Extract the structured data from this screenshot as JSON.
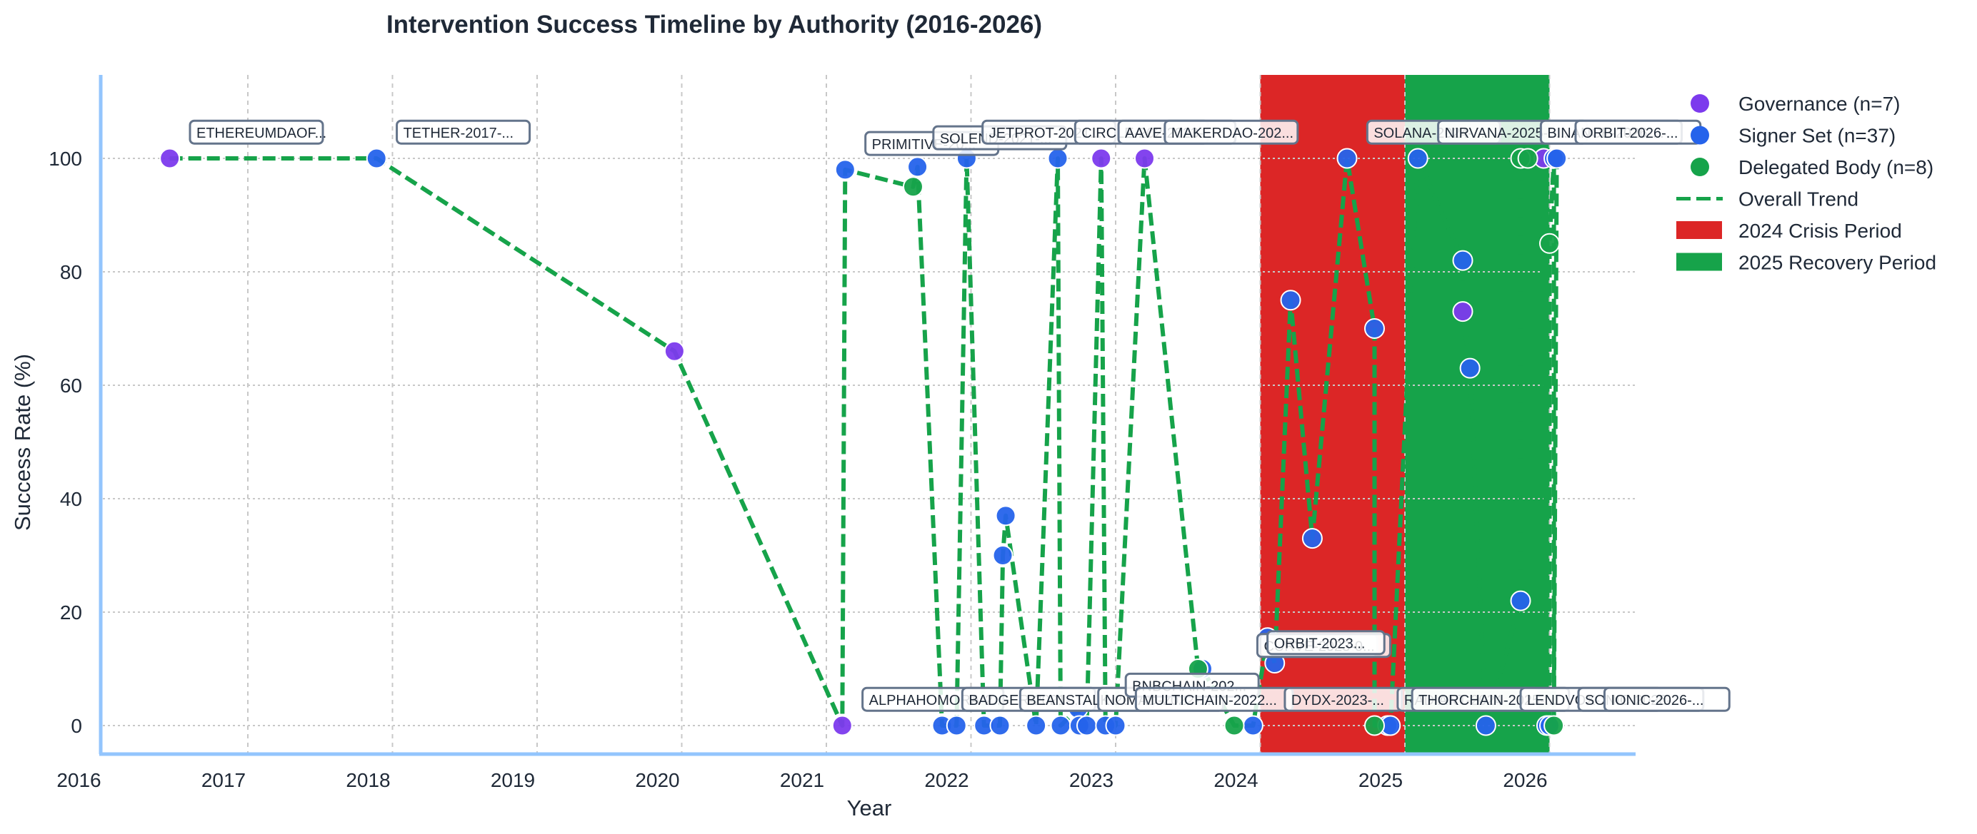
{
  "chart_data": {
    "type": "scatter",
    "title": "Intervention Success Timeline by Authority (2016-2026)",
    "xlabel": "Year",
    "ylabel": "Success Rate (%)",
    "xlim": [
      2016,
      2026.8
    ],
    "ylim": [
      -5,
      115
    ],
    "x_ticks": [
      "2016",
      "2017",
      "2018",
      "2019",
      "2020",
      "2021",
      "2022",
      "2023",
      "2024",
      "2025",
      "2026"
    ],
    "y_ticks": [
      "0",
      "20",
      "40",
      "60",
      "80",
      "100"
    ],
    "grid": true,
    "legend_position": "upper right, outside plot",
    "legend": [
      {
        "label": "Governance (n=7)",
        "kind": "marker",
        "color": "#7c3aed"
      },
      {
        "label": "Signer Set (n=37)",
        "kind": "marker",
        "color": "#2563eb"
      },
      {
        "label": "Delegated Body (n=8)",
        "kind": "marker",
        "color": "#16a34a"
      },
      {
        "label": "Overall Trend",
        "kind": "dashed-line",
        "color": "#16a34a"
      },
      {
        "label": "2024 Crisis Period",
        "kind": "patch",
        "color": "#dc2626"
      },
      {
        "label": "2025 Recovery Period",
        "kind": "patch",
        "color": "#16a34a"
      }
    ],
    "spans": [
      {
        "name": "2024 Crisis Period",
        "x0": 2024.0,
        "x1": 2025.0,
        "color": "#dc2626"
      },
      {
        "name": "2025 Recovery Period",
        "x0": 2025.0,
        "x1": 2026.0,
        "color": "#16a34a"
      }
    ],
    "series": [
      {
        "name": "Governance",
        "color": "#7c3aed",
        "points": [
          [
            2016.46,
            100
          ],
          [
            2019.95,
            66
          ],
          [
            2021.11,
            0
          ],
          [
            2022.9,
            100
          ],
          [
            2023.2,
            100
          ],
          [
            2025.4,
            73
          ],
          [
            2025.96,
            100
          ]
        ]
      },
      {
        "name": "Signer Set",
        "color": "#2563eb",
        "points": [
          [
            2017.89,
            100
          ],
          [
            2021.13,
            98
          ],
          [
            2021.63,
            98.5
          ],
          [
            2021.8,
            0
          ],
          [
            2021.9,
            0
          ],
          [
            2021.97,
            100
          ],
          [
            2022.09,
            0
          ],
          [
            2022.2,
            0
          ],
          [
            2022.22,
            30
          ],
          [
            2022.24,
            37
          ],
          [
            2022.45,
            0
          ],
          [
            2022.6,
            100
          ],
          [
            2022.62,
            0
          ],
          [
            2022.74,
            3
          ],
          [
            2022.75,
            0
          ],
          [
            2022.8,
            0
          ],
          [
            2022.93,
            0
          ],
          [
            2023.0,
            0
          ],
          [
            2023.6,
            10
          ],
          [
            2023.95,
            0
          ],
          [
            2024.05,
            15.5
          ],
          [
            2024.1,
            11
          ],
          [
            2024.21,
            75
          ],
          [
            2024.36,
            33
          ],
          [
            2024.6,
            100
          ],
          [
            2024.79,
            70
          ],
          [
            2024.88,
            0
          ],
          [
            2024.9,
            0
          ],
          [
            2025.09,
            100
          ],
          [
            2025.4,
            82
          ],
          [
            2025.45,
            63
          ],
          [
            2025.56,
            0
          ],
          [
            2025.8,
            22
          ],
          [
            2025.98,
            0
          ],
          [
            2026.0,
            0
          ],
          [
            2026.03,
            100
          ],
          [
            2026.05,
            100
          ]
        ]
      },
      {
        "name": "Delegated Body",
        "color": "#16a34a",
        "points": [
          [
            2021.6,
            95
          ],
          [
            2023.57,
            10
          ],
          [
            2023.82,
            0
          ],
          [
            2024.79,
            0
          ],
          [
            2025.8,
            100
          ],
          [
            2025.85,
            100
          ],
          [
            2026.0,
            85
          ],
          [
            2026.03,
            0
          ]
        ]
      }
    ],
    "trend": {
      "name": "Overall Trend",
      "style": "dashed",
      "color": "#16a34a",
      "points": [
        [
          2016.46,
          100
        ],
        [
          2017.89,
          100
        ],
        [
          2019.95,
          66
        ],
        [
          2021.11,
          0
        ],
        [
          2021.13,
          98
        ],
        [
          2021.6,
          95
        ],
        [
          2021.63,
          98.5
        ],
        [
          2021.8,
          0
        ],
        [
          2021.9,
          0
        ],
        [
          2021.97,
          100
        ],
        [
          2022.09,
          0
        ],
        [
          2022.2,
          0
        ],
        [
          2022.22,
          30
        ],
        [
          2022.24,
          37
        ],
        [
          2022.45,
          0
        ],
        [
          2022.6,
          100
        ],
        [
          2022.62,
          0
        ],
        [
          2022.74,
          3
        ],
        [
          2022.75,
          0
        ],
        [
          2022.8,
          0
        ],
        [
          2022.9,
          100
        ],
        [
          2022.93,
          0
        ],
        [
          2023.0,
          0
        ],
        [
          2023.2,
          100
        ],
        [
          2023.57,
          10
        ],
        [
          2023.6,
          10
        ],
        [
          2023.82,
          0
        ],
        [
          2023.95,
          0
        ],
        [
          2024.05,
          15.5
        ],
        [
          2024.1,
          11
        ],
        [
          2024.21,
          75
        ],
        [
          2024.36,
          33
        ],
        [
          2024.6,
          100
        ],
        [
          2024.79,
          70
        ],
        [
          2024.79,
          0
        ],
        [
          2024.88,
          0
        ],
        [
          2024.9,
          0
        ],
        [
          2025.09,
          100
        ],
        [
          2025.4,
          82
        ],
        [
          2025.4,
          73
        ],
        [
          2025.45,
          63
        ],
        [
          2025.56,
          0
        ],
        [
          2025.8,
          22
        ],
        [
          2025.8,
          100
        ],
        [
          2025.85,
          100
        ],
        [
          2025.96,
          100
        ],
        [
          2025.98,
          0
        ],
        [
          2026.0,
          0
        ],
        [
          2026.0,
          85
        ],
        [
          2026.03,
          100
        ],
        [
          2026.03,
          0
        ],
        [
          2026.05,
          100
        ]
      ]
    },
    "annotations": [
      {
        "text": "ETHEREUMDAOF...",
        "x": 2016.6,
        "y": 104.5
      },
      {
        "text": "TETHER-2017-...",
        "x": 2018.03,
        "y": 104.5
      },
      {
        "text": "PRIMITIVE-20...",
        "x": 2021.27,
        "y": 102.5
      },
      {
        "text": "SOLEND-2021-...",
        "x": 2021.74,
        "y": 103.5
      },
      {
        "text": "JETPROT-2021...",
        "x": 2022.08,
        "y": 104.5
      },
      {
        "text": "CIRCLE-2022-...",
        "x": 2022.72,
        "y": 104.5
      },
      {
        "text": "AAVE-2023-...",
        "x": 2023.02,
        "y": 104.5
      },
      {
        "text": "MAKERDAO-202...",
        "x": 2023.34,
        "y": 104.5
      },
      {
        "text": "SOLANA-2024-...",
        "x": 2024.74,
        "y": 104.5
      },
      {
        "text": "NIRVANA-2025-0...",
        "x": 2025.23,
        "y": 104.5
      },
      {
        "text": "BINANCE-2026-...",
        "x": 2025.94,
        "y": 104.5
      },
      {
        "text": "ORBIT-2026-...",
        "x": 2026.18,
        "y": 104.5
      },
      {
        "text": "ALPHAHOMORA-2...",
        "x": 2021.25,
        "y": 4.5
      },
      {
        "text": "BADGER-2021-...",
        "x": 2021.94,
        "y": 4.5
      },
      {
        "text": "BEANSTALK-20...",
        "x": 2022.34,
        "y": 4.5
      },
      {
        "text": "NOMAD-2022-...",
        "x": 2022.88,
        "y": 4.5
      },
      {
        "text": "BNBCHAIN-202...",
        "x": 2023.07,
        "y": 7.0
      },
      {
        "text": "MULTICHAIN-2022...",
        "x": 2023.14,
        "y": 4.5
      },
      {
        "text": "DEXX-2024-...",
        "x": 2024.0,
        "y": 14.0
      },
      {
        "text": "CURVE-2023-0...",
        "x": 2023.98,
        "y": 14.0
      },
      {
        "text": "ORBIT-2023...",
        "x": 2024.05,
        "y": 14.5
      },
      {
        "text": "DYDX-2023-...",
        "x": 2024.17,
        "y": 4.5
      },
      {
        "text": "RADIANT-2024-...",
        "x": 2024.95,
        "y": 4.5
      },
      {
        "text": "THORCHAIN-2025-...",
        "x": 2025.05,
        "y": 4.5
      },
      {
        "text": "LENDVOX-2026-...",
        "x": 2025.8,
        "y": 4.5
      },
      {
        "text": "SONIC-2026-...",
        "x": 2026.2,
        "y": 4.5
      },
      {
        "text": "IONIC-2026-...",
        "x": 2026.38,
        "y": 4.5
      }
    ]
  }
}
